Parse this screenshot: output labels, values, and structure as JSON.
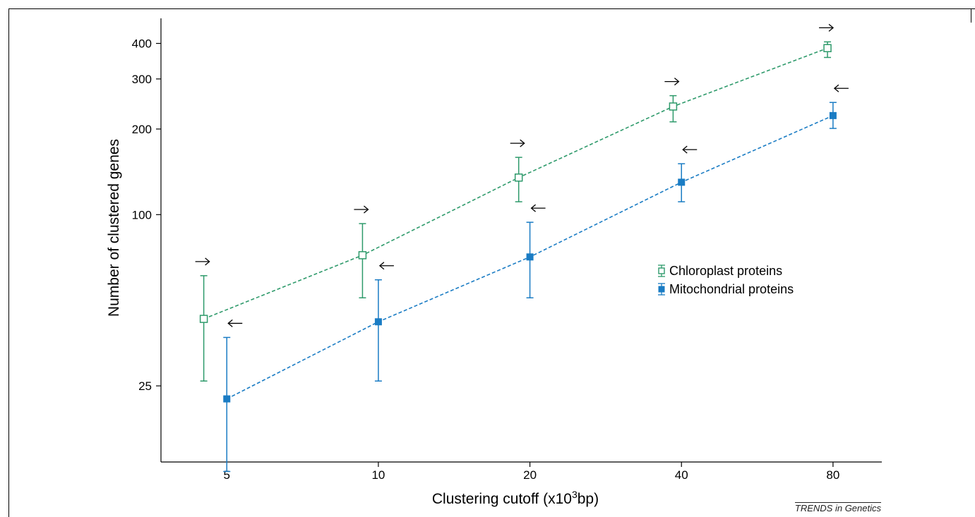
{
  "chart_data": {
    "type": "scatter",
    "xlabel": "Clustering cutoff (x10",
    "xlabel_sup": "3",
    "xlabel_suffix": "bp)",
    "ylabel": "Number of clustered genes",
    "x_scale": "log",
    "y_scale": "log",
    "x_ticks": [
      5,
      10,
      20,
      40,
      80
    ],
    "y_ticks": [
      25,
      100,
      200,
      300,
      400
    ],
    "xlim": [
      3.7,
      100
    ],
    "ylim": [
      13.5,
      490
    ],
    "legend_position": "center-right",
    "series": [
      {
        "name": "Chloroplast proteins",
        "marker": "open-square",
        "color": "#2e9a6b",
        "arrow": "right",
        "x": [
          4.5,
          9.3,
          19,
          38.5,
          78
        ],
        "y": [
          43,
          72,
          135,
          240,
          385
        ],
        "y_low": [
          26,
          51,
          111,
          212,
          357
        ],
        "y_high": [
          61,
          93,
          159,
          262,
          405
        ]
      },
      {
        "name": "Mitochondrial proteins",
        "marker": "filled-square",
        "color": "#1a7cc4",
        "arrow": "left",
        "x": [
          5,
          10,
          20,
          40,
          80
        ],
        "y": [
          22.5,
          42,
          71,
          130,
          223
        ],
        "y_low": [
          12.5,
          26,
          51,
          111,
          201
        ],
        "y_high": [
          37,
          59,
          94,
          151,
          248
        ]
      }
    ]
  },
  "footer": {
    "source": "TRENDS in Genetics"
  }
}
